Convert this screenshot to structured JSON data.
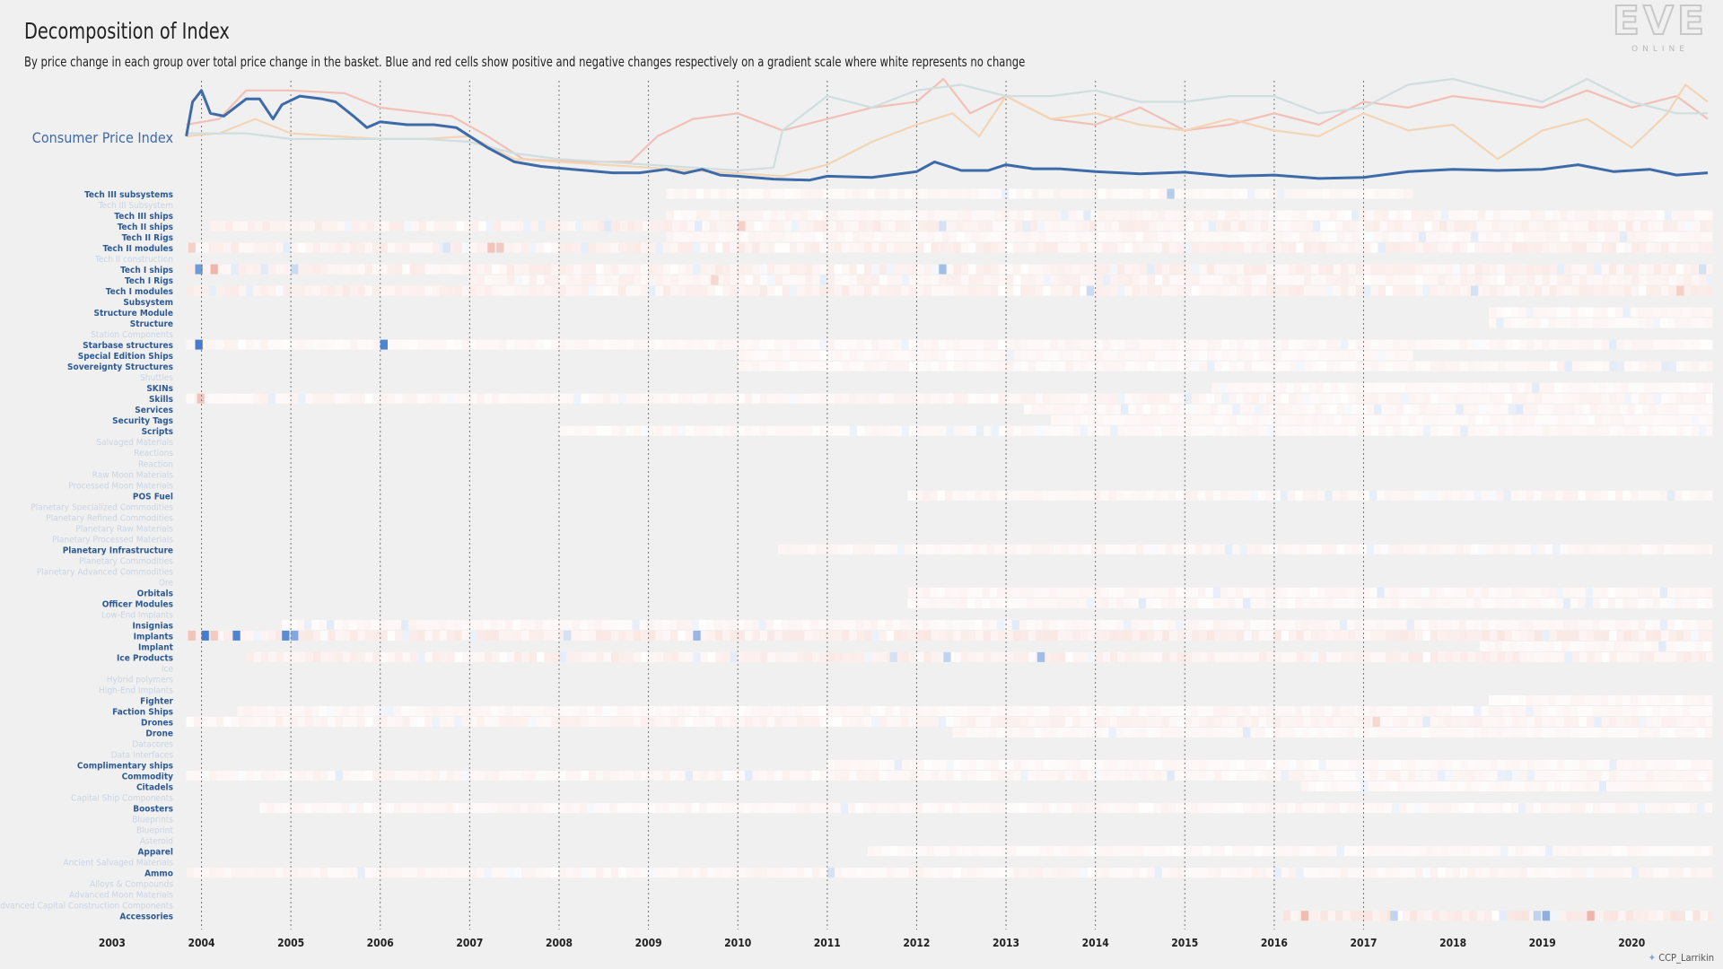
{
  "title": "Decomposition of Index",
  "subtitle": "By price change in each group over total price change in the basket. Blue and red cells show positive and negative changes respectively on a gradient scale where white represents no change",
  "logo": {
    "main": "EVE",
    "sub": "ONLINE"
  },
  "credit": "CCP_Larrikin",
  "colors": {
    "cpi": "#3d6aa8",
    "positive": "#2f6fc9",
    "negative": "#e07a66",
    "label_active": "#2e5a94",
    "label_faded": "#c9d4e3",
    "background": "#f0f0f0"
  },
  "chart_data": {
    "type": "heatmap",
    "x_range": [
      2002.75,
      2020.9
    ],
    "x_ticks": [
      "2003",
      "2004",
      "2005",
      "2006",
      "2007",
      "2008",
      "2009",
      "2010",
      "2011",
      "2012",
      "2013",
      "2014",
      "2015",
      "2016",
      "2017",
      "2018",
      "2019",
      "2020"
    ],
    "vertical_gridlines": [
      2004,
      2005,
      2006,
      2007,
      2008,
      2009,
      2010,
      2011,
      2012,
      2013,
      2014,
      2015,
      2016,
      2017
    ],
    "cpi": {
      "label": "Consumer Price Index",
      "ylim": [
        0.3,
        1.9
      ],
      "x": [
        2003.83,
        2003.9,
        2004.0,
        2004.1,
        2004.25,
        2004.5,
        2004.65,
        2004.8,
        2004.9,
        2005.1,
        2005.35,
        2005.5,
        2005.7,
        2005.85,
        2006.0,
        2006.3,
        2006.6,
        2006.85,
        2007.0,
        2007.2,
        2007.5,
        2007.8,
        2008.0,
        2008.3,
        2008.6,
        2008.9,
        2009.2,
        2009.4,
        2009.6,
        2009.8,
        2010.0,
        2010.4,
        2010.8,
        2011.0,
        2011.5,
        2012.0,
        2012.2,
        2012.5,
        2012.8,
        2013.0,
        2013.3,
        2013.6,
        2014.0,
        2014.5,
        2015.0,
        2015.5,
        2016.0,
        2016.5,
        2017.0,
        2017.5,
        2018.0,
        2018.5,
        2019.0,
        2019.4,
        2019.8,
        2020.2,
        2020.5,
        2020.85
      ],
      "y": [
        0.9,
        1.5,
        1.7,
        1.3,
        1.25,
        1.55,
        1.55,
        1.2,
        1.45,
        1.6,
        1.55,
        1.5,
        1.25,
        1.05,
        1.15,
        1.1,
        1.1,
        1.05,
        0.9,
        0.7,
        0.45,
        0.37,
        0.34,
        0.3,
        0.26,
        0.26,
        0.32,
        0.25,
        0.32,
        0.22,
        0.2,
        0.15,
        0.13,
        0.2,
        0.18,
        0.28,
        0.45,
        0.3,
        0.3,
        0.4,
        0.33,
        0.33,
        0.28,
        0.24,
        0.27,
        0.2,
        0.22,
        0.16,
        0.18,
        0.28,
        0.32,
        0.3,
        0.32,
        0.4,
        0.28,
        0.32,
        0.22,
        0.26
      ],
      "other_series": [
        {
          "color": "#f2c0b6",
          "x": [
            2003.83,
            2004.2,
            2004.5,
            2005.0,
            2005.6,
            2006.0,
            2006.8,
            2007.2,
            2007.6,
            2008.2,
            2008.8,
            2009.1,
            2009.5,
            2010.0,
            2010.5,
            2011.0,
            2011.5,
            2012.0,
            2012.3,
            2012.6,
            2013.0,
            2013.5,
            2014.0,
            2014.5,
            2015.0,
            2015.5,
            2016.0,
            2016.5,
            2017.0,
            2017.5,
            2018.0,
            2018.5,
            2019.0,
            2019.5,
            2020.0,
            2020.5,
            2020.85
          ],
          "y": [
            1.1,
            1.2,
            1.7,
            1.7,
            1.65,
            1.4,
            1.25,
            0.9,
            0.5,
            0.45,
            0.45,
            0.9,
            1.2,
            1.3,
            1.0,
            1.2,
            1.4,
            1.5,
            1.9,
            1.3,
            1.6,
            1.2,
            1.1,
            1.4,
            1.0,
            1.1,
            1.3,
            1.1,
            1.5,
            1.4,
            1.6,
            1.5,
            1.4,
            1.7,
            1.4,
            1.6,
            1.2
          ]
        },
        {
          "color": "#f3d5b5",
          "x": [
            2003.83,
            2004.2,
            2004.6,
            2005.0,
            2005.5,
            2006.0,
            2006.5,
            2007.0,
            2007.5,
            2008.0,
            2008.5,
            2009.0,
            2009.5,
            2010.0,
            2010.5,
            2011.0,
            2011.5,
            2012.0,
            2012.4,
            2012.7,
            2013.0,
            2013.5,
            2014.0,
            2014.5,
            2015.0,
            2015.5,
            2016.0,
            2016.5,
            2017.0,
            2017.5,
            2018.0,
            2018.5,
            2019.0,
            2019.5,
            2020.0,
            2020.4,
            2020.6,
            2020.85
          ],
          "y": [
            0.9,
            0.95,
            1.2,
            0.95,
            0.9,
            0.85,
            0.85,
            0.9,
            0.5,
            0.45,
            0.4,
            0.35,
            0.3,
            0.25,
            0.2,
            0.4,
            0.8,
            1.1,
            1.3,
            0.9,
            1.6,
            1.2,
            1.3,
            1.1,
            1.0,
            1.2,
            1.0,
            0.9,
            1.3,
            1.0,
            1.1,
            0.5,
            1.0,
            1.2,
            0.7,
            1.3,
            1.8,
            1.5
          ]
        },
        {
          "color": "#cfdede",
          "x": [
            2003.83,
            2004.5,
            2005.0,
            2006.0,
            2006.5,
            2007.0,
            2007.5,
            2008.0,
            2008.5,
            2009.0,
            2009.5,
            2010.0,
            2010.4,
            2010.5,
            2011.0,
            2011.5,
            2012.0,
            2012.5,
            2013.0,
            2013.5,
            2014.0,
            2014.5,
            2015.0,
            2015.5,
            2016.0,
            2016.5,
            2017.0,
            2017.5,
            2018.0,
            2018.5,
            2019.0,
            2019.5,
            2020.0,
            2020.5,
            2020.85
          ],
          "y": [
            0.95,
            0.95,
            0.85,
            0.85,
            0.85,
            0.8,
            0.6,
            0.5,
            0.45,
            0.4,
            0.35,
            0.3,
            0.35,
            1.0,
            1.6,
            1.4,
            1.7,
            1.8,
            1.6,
            1.6,
            1.7,
            1.5,
            1.5,
            1.6,
            1.6,
            1.3,
            1.4,
            1.8,
            1.9,
            1.7,
            1.5,
            1.9,
            1.5,
            1.3,
            1.3
          ]
        }
      ]
    },
    "rows": [
      {
        "name": "Tech III subsystems",
        "active": true,
        "start": 2009.2,
        "end": 2017.55,
        "seed": 3,
        "intensity": 0.07,
        "accents": [
          {
            "x": 2014.8,
            "v": 0.35
          }
        ]
      },
      {
        "name": "Tech III Subsystem",
        "active": false
      },
      {
        "name": "Tech III ships",
        "active": true,
        "start": 2009.2,
        "end": 2020.9,
        "seed": 5,
        "intensity": 0.08,
        "accents": []
      },
      {
        "name": "Tech II ships",
        "active": true,
        "start": 2004.1,
        "end": 2020.9,
        "seed": 7,
        "intensity": 0.12,
        "accents": [
          {
            "x": 2010.0,
            "v": -0.35
          },
          {
            "x": 2012.25,
            "v": 0.2
          },
          {
            "x": 2008.5,
            "v": 0.15
          }
        ]
      },
      {
        "name": "Tech II Rigs",
        "active": true,
        "start": 2009.2,
        "end": 2020.9,
        "seed": 11,
        "intensity": 0.07,
        "accents": []
      },
      {
        "name": "Tech II modules",
        "active": true,
        "start": 2003.83,
        "end": 2020.9,
        "seed": 13,
        "intensity": 0.12,
        "accents": [
          {
            "x": 2007.2,
            "v": -0.45
          },
          {
            "x": 2007.3,
            "v": -0.4
          },
          {
            "x": 2003.85,
            "v": -0.35
          },
          {
            "x": 2006.7,
            "v": 0.18
          }
        ]
      },
      {
        "name": "Tech II construction",
        "active": false
      },
      {
        "name": "Tech I ships",
        "active": true,
        "start": 2003.83,
        "end": 2020.9,
        "seed": 17,
        "intensity": 0.12,
        "accents": [
          {
            "x": 2003.93,
            "v": 0.7
          },
          {
            "x": 2004.1,
            "v": -0.55
          },
          {
            "x": 2012.25,
            "v": 0.45
          },
          {
            "x": 2005.0,
            "v": 0.25
          },
          {
            "x": 2020.75,
            "v": 0.2
          }
        ]
      },
      {
        "name": "Tech I Rigs",
        "active": true,
        "start": 2007.0,
        "end": 2020.9,
        "seed": 19,
        "intensity": 0.1,
        "accents": [
          {
            "x": 2009.7,
            "v": -0.3
          }
        ]
      },
      {
        "name": "Tech I modules",
        "active": true,
        "start": 2003.83,
        "end": 2020.9,
        "seed": 23,
        "intensity": 0.12,
        "accents": [
          {
            "x": 2013.9,
            "v": 0.25
          },
          {
            "x": 2020.5,
            "v": -0.35
          },
          {
            "x": 2018.2,
            "v": 0.2
          }
        ]
      },
      {
        "name": "Subsystem",
        "active": true
      },
      {
        "name": "Structure Module",
        "active": true,
        "start": 2018.4,
        "end": 2020.9,
        "seed": 29,
        "intensity": 0.06,
        "accents": []
      },
      {
        "name": "Structure",
        "active": true,
        "start": 2018.4,
        "end": 2020.9,
        "seed": 31,
        "intensity": 0.06,
        "accents": []
      },
      {
        "name": "Station Components",
        "active": false
      },
      {
        "name": "Starbase structures",
        "active": true,
        "start": 2003.83,
        "end": 2020.9,
        "seed": 37,
        "intensity": 0.07,
        "accents": [
          {
            "x": 2003.93,
            "v": 0.9
          },
          {
            "x": 2006.0,
            "v": 0.85
          }
        ]
      },
      {
        "name": "Special Edition Ships",
        "active": true,
        "start": 2010.0,
        "end": 2017.55,
        "seed": 41,
        "intensity": 0.06,
        "accents": []
      },
      {
        "name": "Sovereignty Structures",
        "active": true,
        "start": 2010.0,
        "end": 2020.9,
        "seed": 43,
        "intensity": 0.07,
        "accents": []
      },
      {
        "name": "Shuttles",
        "active": false
      },
      {
        "name": "SKINs",
        "active": true,
        "start": 2015.3,
        "end": 2020.9,
        "seed": 47,
        "intensity": 0.06,
        "accents": []
      },
      {
        "name": "Skills",
        "active": true,
        "start": 2003.83,
        "end": 2020.9,
        "seed": 53,
        "intensity": 0.08,
        "accents": [
          {
            "x": 2003.95,
            "v": -0.45
          }
        ]
      },
      {
        "name": "Services",
        "active": true,
        "start": 2013.2,
        "end": 2020.9,
        "seed": 59,
        "intensity": 0.07,
        "accents": [
          {
            "x": 2018.7,
            "v": 0.15
          }
        ]
      },
      {
        "name": "Security Tags",
        "active": true,
        "start": 2013.5,
        "end": 2020.9,
        "seed": 61,
        "intensity": 0.06,
        "accents": []
      },
      {
        "name": "Scripts",
        "active": true,
        "start": 2008.0,
        "end": 2020.9,
        "seed": 67,
        "intensity": 0.06,
        "accents": []
      },
      {
        "name": "Salvaged Materials",
        "active": false
      },
      {
        "name": "Reactions",
        "active": false
      },
      {
        "name": "Reaction",
        "active": false
      },
      {
        "name": "Raw Moon Materials",
        "active": false
      },
      {
        "name": "Processed Moon Materials",
        "active": false
      },
      {
        "name": "POS Fuel",
        "active": true,
        "start": 2011.9,
        "end": 2020.9,
        "seed": 71,
        "intensity": 0.08,
        "accents": []
      },
      {
        "name": "Planetary Specialized Commodities",
        "active": false
      },
      {
        "name": "Planetary Refined Commodities",
        "active": false
      },
      {
        "name": "Planetary Raw Materials",
        "active": false
      },
      {
        "name": "Planetary Processed Materials",
        "active": false
      },
      {
        "name": "Planetary Infrastructure",
        "active": true,
        "start": 2010.45,
        "end": 2020.9,
        "seed": 73,
        "intensity": 0.07,
        "accents": []
      },
      {
        "name": "Planetary Commodities",
        "active": false
      },
      {
        "name": "Planetary Advanced Commodities",
        "active": false
      },
      {
        "name": "Ore",
        "active": false
      },
      {
        "name": "Orbitals",
        "active": true,
        "start": 2011.9,
        "end": 2020.9,
        "seed": 79,
        "intensity": 0.07,
        "accents": []
      },
      {
        "name": "Officer Modules",
        "active": true,
        "start": 2011.9,
        "end": 2020.9,
        "seed": 83,
        "intensity": 0.07,
        "accents": []
      },
      {
        "name": "Low-End Implants",
        "active": false
      },
      {
        "name": "Insignias",
        "active": true,
        "start": 2004.9,
        "end": 2020.9,
        "seed": 89,
        "intensity": 0.07,
        "accents": []
      },
      {
        "name": "Implants",
        "active": true,
        "start": 2003.83,
        "end": 2020.9,
        "seed": 97,
        "intensity": 0.14,
        "accents": [
          {
            "x": 2003.85,
            "v": -0.45
          },
          {
            "x": 2004.0,
            "v": 0.9
          },
          {
            "x": 2004.35,
            "v": 0.85
          },
          {
            "x": 2004.9,
            "v": 0.8
          },
          {
            "x": 2005.0,
            "v": 0.6
          },
          {
            "x": 2004.1,
            "v": -0.4
          },
          {
            "x": 2009.5,
            "v": 0.5
          },
          {
            "x": 2008.05,
            "v": 0.2
          }
        ]
      },
      {
        "name": "Implant",
        "active": true,
        "start": 2018.3,
        "end": 2020.9,
        "seed": 101,
        "intensity": 0.07,
        "accents": []
      },
      {
        "name": "Ice Products",
        "active": true,
        "start": 2004.5,
        "end": 2020.9,
        "seed": 103,
        "intensity": 0.12,
        "accents": [
          {
            "x": 2013.35,
            "v": 0.45
          },
          {
            "x": 2012.3,
            "v": 0.3
          },
          {
            "x": 2011.7,
            "v": 0.2
          }
        ]
      },
      {
        "name": "Ice",
        "active": false
      },
      {
        "name": "Hybrid polymers",
        "active": false
      },
      {
        "name": "High-End Implants",
        "active": false
      },
      {
        "name": "Fighter",
        "active": true,
        "start": 2018.4,
        "end": 2020.9,
        "seed": 107,
        "intensity": 0.06,
        "accents": []
      },
      {
        "name": "Faction Ships",
        "active": true,
        "start": 2004.4,
        "end": 2020.9,
        "seed": 109,
        "intensity": 0.07,
        "accents": []
      },
      {
        "name": "Drones",
        "active": true,
        "start": 2003.83,
        "end": 2020.9,
        "seed": 113,
        "intensity": 0.09,
        "accents": [
          {
            "x": 2017.1,
            "v": -0.3
          }
        ]
      },
      {
        "name": "Drone",
        "active": true,
        "start": 2012.4,
        "end": 2020.9,
        "seed": 127,
        "intensity": 0.06,
        "accents": []
      },
      {
        "name": "Datacores",
        "active": false
      },
      {
        "name": "Data Interfaces",
        "active": false
      },
      {
        "name": "Complimentary ships",
        "active": true,
        "start": 2011.0,
        "end": 2020.9,
        "seed": 131,
        "intensity": 0.06,
        "accents": []
      },
      {
        "name": "Commodity",
        "active": true,
        "start": 2003.83,
        "end": 2020.9,
        "seed": 137,
        "intensity": 0.08,
        "accents": [
          {
            "x": 2014.8,
            "v": 0.15
          }
        ]
      },
      {
        "name": "Citadels",
        "active": true,
        "start": 2016.3,
        "end": 2020.9,
        "seed": 139,
        "intensity": 0.06,
        "accents": []
      },
      {
        "name": "Capital Ship Components",
        "active": false
      },
      {
        "name": "Boosters",
        "active": true,
        "start": 2004.65,
        "end": 2020.9,
        "seed": 149,
        "intensity": 0.07,
        "accents": []
      },
      {
        "name": "Blueprints",
        "active": false
      },
      {
        "name": "Blueprint",
        "active": false
      },
      {
        "name": "Asteroid",
        "active": false
      },
      {
        "name": "Apparel",
        "active": true,
        "start": 2011.45,
        "end": 2020.9,
        "seed": 151,
        "intensity": 0.06,
        "accents": []
      },
      {
        "name": "Ancient Salvaged Materials",
        "active": false
      },
      {
        "name": "Ammo",
        "active": true,
        "start": 2003.83,
        "end": 2020.9,
        "seed": 157,
        "intensity": 0.08,
        "accents": [
          {
            "x": 2011.0,
            "v": 0.2
          }
        ]
      },
      {
        "name": "Alloys & Compounds",
        "active": false
      },
      {
        "name": "Advanced Moon Materials",
        "active": false
      },
      {
        "name": "Advanced Capital Construction Components",
        "active": false
      },
      {
        "name": "Accessories",
        "active": true,
        "start": 2016.1,
        "end": 2020.9,
        "seed": 163,
        "intensity": 0.16,
        "accents": [
          {
            "x": 2016.3,
            "v": -0.5
          },
          {
            "x": 2019.0,
            "v": 0.55
          },
          {
            "x": 2019.5,
            "v": -0.55
          },
          {
            "x": 2017.3,
            "v": 0.3
          },
          {
            "x": 2018.9,
            "v": 0.3
          }
        ]
      }
    ]
  }
}
